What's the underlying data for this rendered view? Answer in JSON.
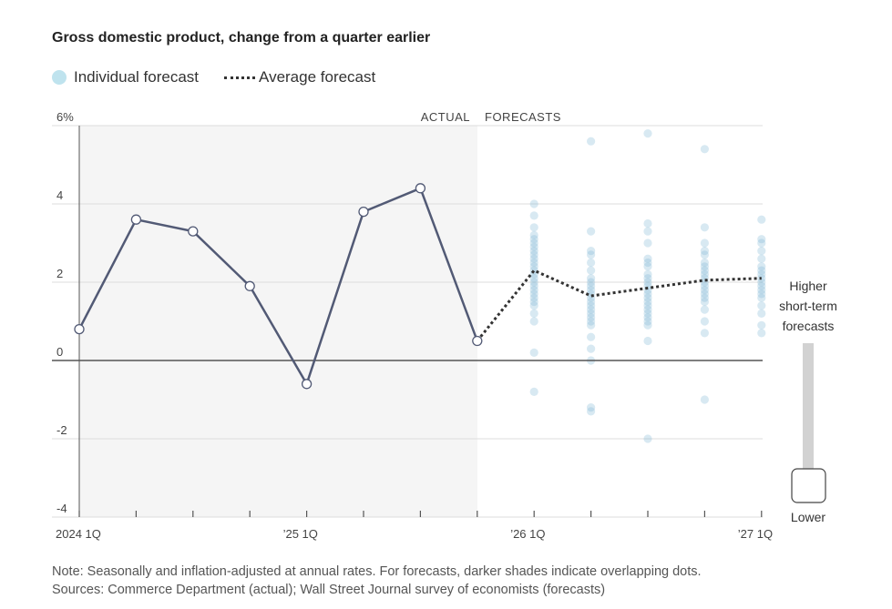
{
  "chart_data": {
    "type": "line",
    "title": "Gross domestic product, change from a quarter earlier",
    "legend": {
      "individual": "Individual forecast",
      "average": "Average forecast",
      "placement": "top-left"
    },
    "region_labels": {
      "actual": "ACTUAL",
      "forecasts": "FORECASTS"
    },
    "ylim": [
      -4,
      6
    ],
    "y_ticks": [
      {
        "value": 6,
        "label": "6%"
      },
      {
        "value": 4,
        "label": "4"
      },
      {
        "value": 2,
        "label": "2"
      },
      {
        "value": 0,
        "label": "0"
      },
      {
        "value": -2,
        "label": "-2"
      },
      {
        "value": -4,
        "label": "-4"
      }
    ],
    "x_tick_labels": [
      {
        "index": 0,
        "label": "2024 1Q"
      },
      {
        "index": 4,
        "label": "’25 1Q"
      },
      {
        "index": 8,
        "label": "’26 1Q"
      },
      {
        "index": 12,
        "label": "’27 1Q"
      }
    ],
    "quarters_count": 13,
    "actual": [
      {
        "index": 0,
        "value": 0.8
      },
      {
        "index": 1,
        "value": 3.6
      },
      {
        "index": 2,
        "value": 3.3
      },
      {
        "index": 3,
        "value": 1.9
      },
      {
        "index": 4,
        "value": -0.6
      },
      {
        "index": 5,
        "value": 3.8
      },
      {
        "index": 6,
        "value": 4.4
      },
      {
        "index": 7,
        "value": 0.5
      }
    ],
    "average_forecast": [
      {
        "index": 7,
        "value": 0.5
      },
      {
        "index": 8,
        "value": 2.3
      },
      {
        "index": 9,
        "value": 1.65
      },
      {
        "index": 10,
        "value": 1.85
      },
      {
        "index": 11,
        "value": 2.05
      },
      {
        "index": 12,
        "value": 2.1
      }
    ],
    "individual_forecasts": [
      {
        "index": 8,
        "values": [
          4.0,
          3.7,
          3.4,
          3.2,
          3.1,
          3.0,
          2.9,
          2.8,
          2.7,
          2.6,
          2.5,
          2.4,
          2.3,
          2.2,
          2.1,
          2.0,
          1.9,
          1.8,
          1.7,
          1.6,
          1.5,
          1.4,
          1.2,
          1.0,
          0.2,
          -0.8
        ]
      },
      {
        "index": 9,
        "values": [
          5.6,
          3.3,
          2.8,
          2.7,
          2.5,
          2.3,
          2.1,
          2.0,
          1.9,
          1.8,
          1.7,
          1.6,
          1.5,
          1.4,
          1.3,
          1.2,
          1.1,
          1.0,
          0.9,
          0.6,
          0.3,
          0.0,
          -1.2,
          -1.3
        ]
      },
      {
        "index": 10,
        "values": [
          5.8,
          3.5,
          3.3,
          3.0,
          2.6,
          2.5,
          2.4,
          2.2,
          2.1,
          2.0,
          1.9,
          1.8,
          1.7,
          1.6,
          1.5,
          1.4,
          1.3,
          1.2,
          1.1,
          1.0,
          0.9,
          0.5,
          -2.0
        ]
      },
      {
        "index": 11,
        "values": [
          5.4,
          3.4,
          3.0,
          2.8,
          2.7,
          2.5,
          2.4,
          2.3,
          2.2,
          2.1,
          2.0,
          1.9,
          1.8,
          1.7,
          1.6,
          1.5,
          1.3,
          1.0,
          0.7,
          -1.0
        ]
      },
      {
        "index": 12,
        "values": [
          3.6,
          3.1,
          3.0,
          2.8,
          2.6,
          2.4,
          2.3,
          2.2,
          2.1,
          2.0,
          1.9,
          1.8,
          1.7,
          1.6,
          1.4,
          1.2,
          0.9,
          0.7
        ]
      }
    ],
    "slider": {
      "top_label": [
        "Higher",
        "short-term",
        "forecasts"
      ],
      "bottom_label": "Lower"
    },
    "colors": {
      "actual_line": "#525a75",
      "average_line": "#333333",
      "dot": "#7fb6d3",
      "dot_dark": "#2e6f99",
      "shade": "#f5f5f5",
      "grid": "#dddddd",
      "zero_line": "#555555"
    }
  },
  "notes": {
    "line1": "Note: Seasonally and inflation-adjusted at annual rates. For forecasts, darker shades indicate overlapping dots.",
    "line2": "Sources: Commerce Department (actual); Wall Street Journal survey of economists (forecasts)"
  }
}
